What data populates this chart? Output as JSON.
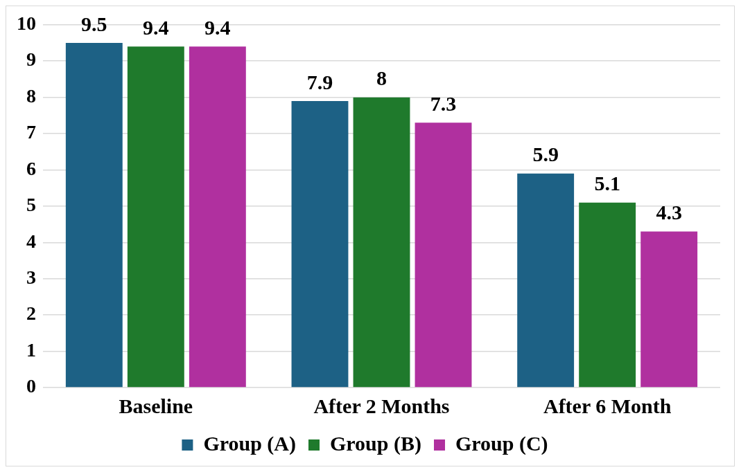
{
  "chart_data": {
    "type": "bar",
    "categories": [
      "Baseline",
      "After 2 Months",
      "After 6 Month"
    ],
    "series": [
      {
        "name": "Group (A)",
        "color": "#1d6185",
        "values": [
          9.5,
          7.9,
          5.9
        ]
      },
      {
        "name": "Group (B)",
        "color": "#1f7a2c",
        "values": [
          9.4,
          8,
          5.1
        ]
      },
      {
        "name": "Group (C)",
        "color": "#b0309f",
        "values": [
          9.4,
          7.3,
          4.3
        ]
      }
    ],
    "ylim": [
      0,
      10
    ],
    "yticks": [
      0,
      1,
      2,
      3,
      4,
      5,
      6,
      7,
      8,
      9,
      10
    ],
    "grid": "y",
    "legend": "bottom",
    "data_labels": true
  }
}
